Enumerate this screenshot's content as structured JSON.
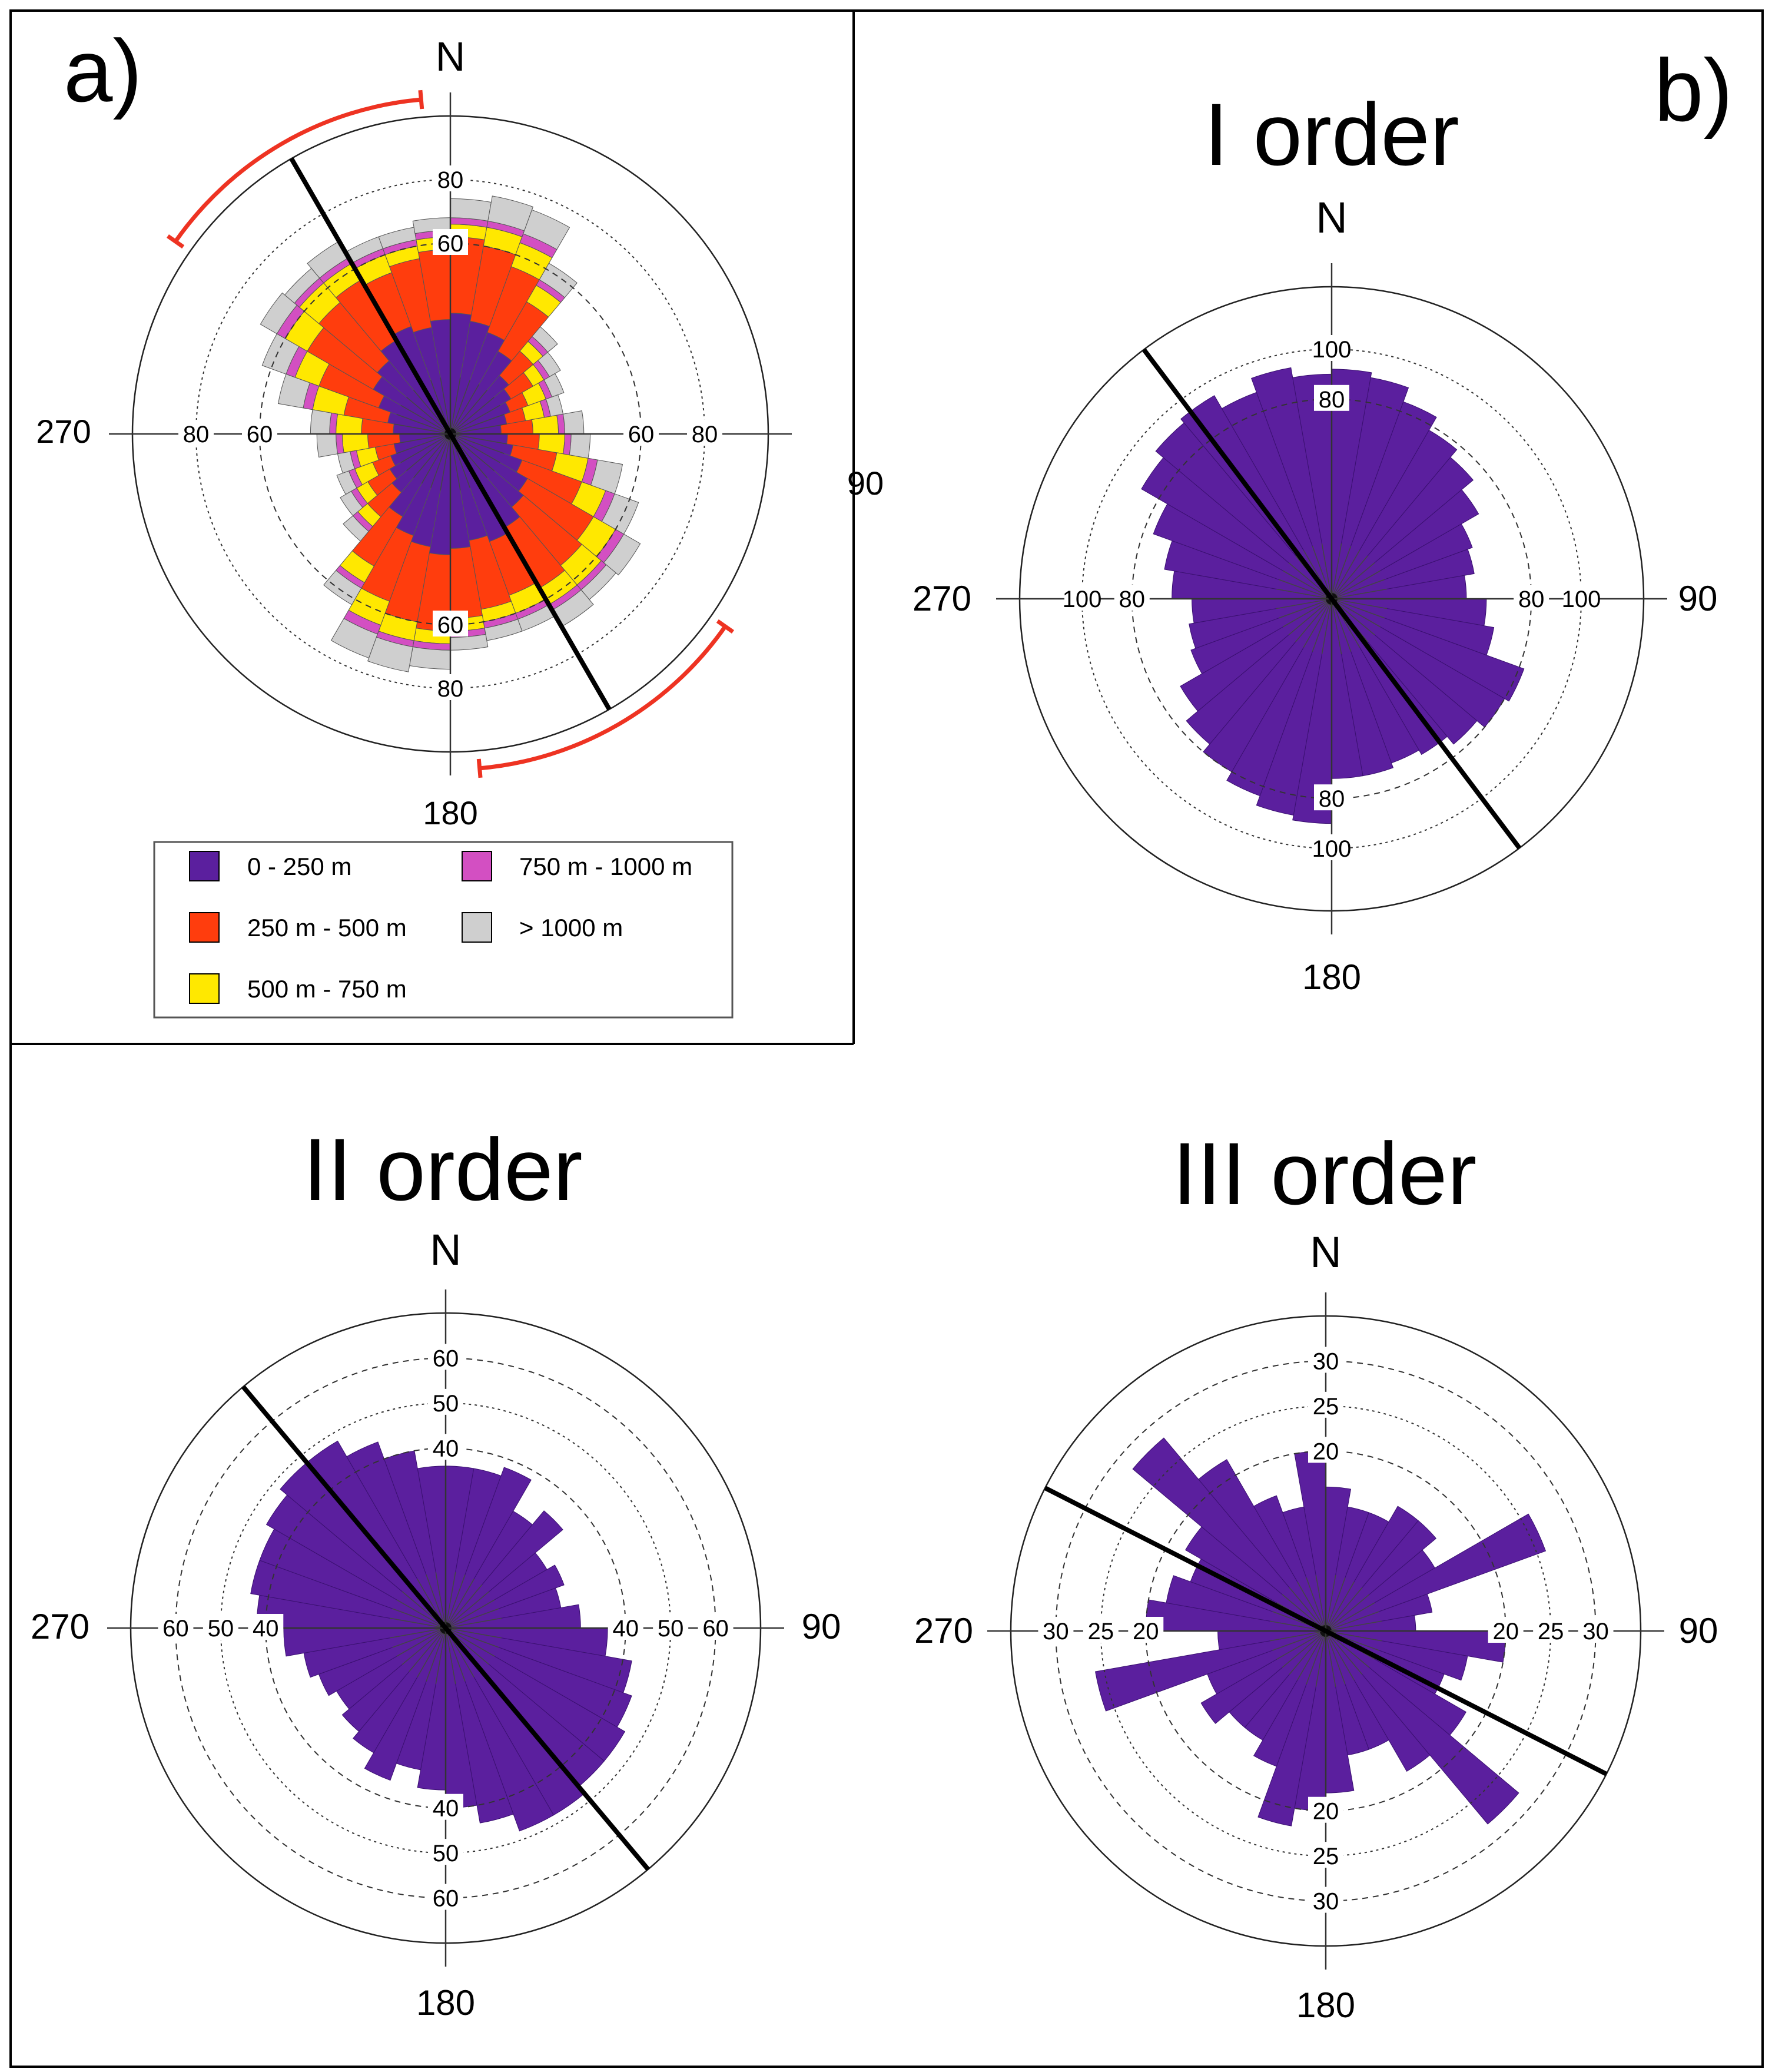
{
  "figure": {
    "panel_a_label": "a)",
    "panel_b_label": "b)",
    "north_label": "N",
    "east_label": "90",
    "south_label": "180",
    "west_label": "270"
  },
  "legend": {
    "items": [
      {
        "label": "0 - 250 m",
        "color": "#5b1f9e"
      },
      {
        "label": "250 m - 500 m",
        "color": "#ff3d0d"
      },
      {
        "label": "500 m - 750 m",
        "color": "#ffe800"
      },
      {
        "label": "750 m - 1000 m",
        "color": "#d34fc2"
      },
      {
        "label": "> 1000 m",
        "color": "#cfcfcf"
      }
    ]
  },
  "colors": {
    "purple": "#5b1f9e",
    "red_arc": "#ee3322",
    "grid": "#222222"
  },
  "chart_data": [
    {
      "id": "all",
      "type": "stacked-rose",
      "title": "",
      "bin_width_deg": 10,
      "rmax": 100,
      "ticks": [
        60,
        80
      ],
      "series": [
        {
          "name": "0 - 250 m",
          "color": "#5b1f9e",
          "values": [
            38,
            36,
            34,
            30,
            24,
            22,
            20,
            18,
            16,
            18,
            20,
            24,
            28,
            30,
            34,
            36,
            34,
            36,
            38,
            36,
            34,
            30,
            24,
            22,
            20,
            18,
            16,
            18,
            20,
            24,
            28,
            30,
            34,
            36,
            34,
            36
          ]
        },
        {
          "name": "250 m - 500 m",
          "color": "#ff3d0d",
          "values": [
            24,
            24,
            22,
            18,
            10,
            8,
            6,
            6,
            10,
            10,
            14,
            20,
            24,
            24,
            22,
            18,
            22,
            22,
            24,
            24,
            22,
            18,
            10,
            8,
            6,
            6,
            10,
            10,
            14,
            20,
            24,
            24,
            22,
            18,
            22,
            22
          ]
        },
        {
          "name": "500 m - 750 m",
          "color": "#ffe800",
          "values": [
            4,
            6,
            8,
            6,
            4,
            4,
            6,
            6,
            8,
            8,
            10,
            8,
            8,
            8,
            6,
            6,
            4,
            4,
            4,
            6,
            8,
            6,
            4,
            4,
            6,
            6,
            8,
            8,
            10,
            8,
            8,
            8,
            6,
            6,
            4,
            4
          ]
        },
        {
          "name": "750 m - 1000 m",
          "color": "#d34fc2",
          "values": [
            2,
            2,
            3,
            2,
            2,
            2,
            2,
            2,
            2,
            2,
            3,
            3,
            3,
            2,
            2,
            2,
            2,
            2,
            2,
            2,
            3,
            2,
            2,
            2,
            2,
            2,
            2,
            2,
            3,
            3,
            3,
            2,
            2,
            2,
            2,
            2
          ]
        },
        {
          "name": "> 1000 m",
          "color": "#cfcfcf",
          "values": [
            6,
            8,
            8,
            6,
            4,
            4,
            4,
            4,
            6,
            6,
            8,
            8,
            6,
            4,
            6,
            4,
            4,
            4,
            6,
            8,
            8,
            6,
            4,
            4,
            4,
            4,
            6,
            6,
            8,
            8,
            6,
            4,
            6,
            4,
            4,
            4
          ]
        }
      ],
      "trend_deg": 150,
      "trend_range_deg": [
        125,
        175
      ]
    },
    {
      "id": "order1",
      "type": "rose",
      "title": "I order",
      "bin_width_deg": 10,
      "rmax": 125,
      "ticks": [
        80,
        100
      ],
      "values": [
        92,
        90,
        84,
        78,
        74,
        68,
        60,
        58,
        54,
        62,
        66,
        82,
        80,
        76,
        72,
        70,
        72,
        72,
        90,
        88,
        84,
        80,
        76,
        70,
        60,
        58,
        56,
        64,
        68,
        76,
        88,
        92,
        94,
        88,
        94,
        90
      ],
      "trend_deg": 143
    },
    {
      "id": "order2",
      "type": "rose",
      "title": "II order",
      "bin_width_deg": 10,
      "rmax": 70,
      "ticks": [
        40,
        50,
        60
      ],
      "values": [
        36,
        36,
        38,
        30,
        34,
        26,
        28,
        26,
        30,
        36,
        42,
        44,
        46,
        46,
        48,
        48,
        44,
        40,
        36,
        32,
        36,
        32,
        30,
        28,
        30,
        32,
        36,
        42,
        44,
        44,
        46,
        48,
        48,
        44,
        40,
        36
      ],
      "trend_deg": 140
    },
    {
      "id": "order3",
      "type": "rose",
      "title": "III order",
      "bin_width_deg": 10,
      "rmax": 35,
      "ticks": [
        20,
        25,
        30
      ],
      "values": [
        16,
        14,
        14,
        16,
        16,
        14,
        26,
        12,
        10,
        20,
        16,
        14,
        18,
        28,
        18,
        14,
        14,
        18,
        20,
        22,
        16,
        14,
        14,
        16,
        14,
        26,
        12,
        20,
        18,
        16,
        18,
        28,
        22,
        16,
        14,
        20
      ],
      "trend_deg": 117
    }
  ]
}
